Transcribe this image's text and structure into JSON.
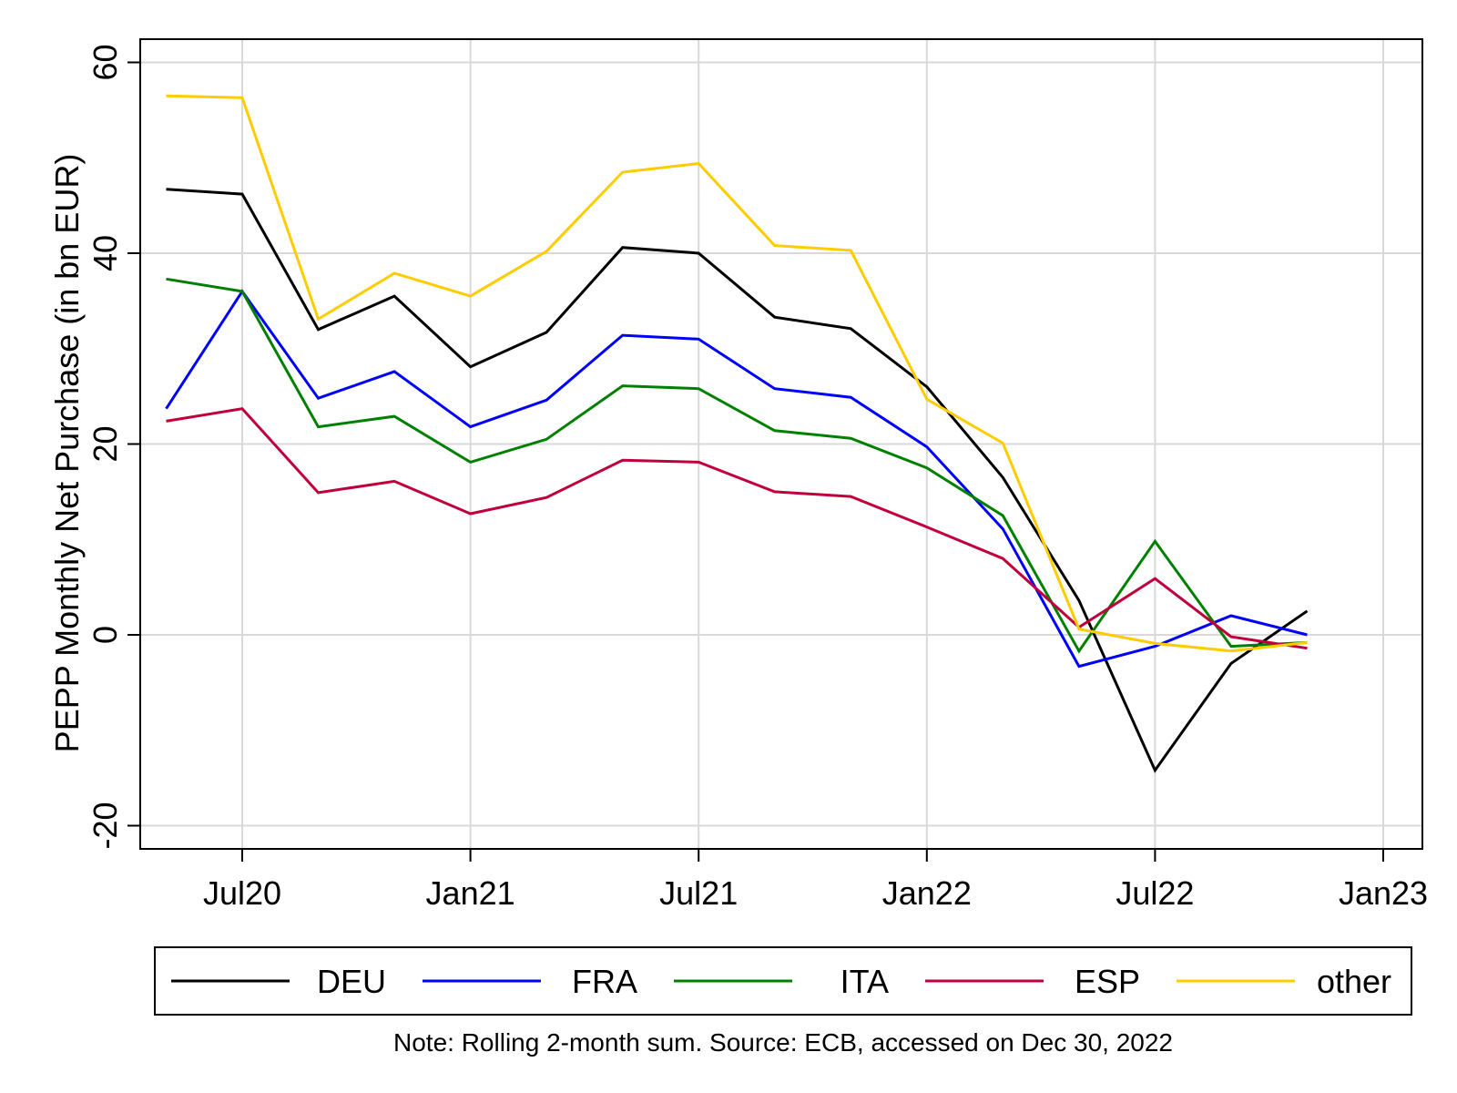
{
  "chart_data": {
    "type": "line",
    "ylabel": "PEPP Monthly Net Purchase (in bn EUR)",
    "xlabel": "",
    "ylim": [
      -22,
      60
    ],
    "yticks": [
      -20,
      0,
      20,
      40,
      60
    ],
    "xticks": [
      {
        "date": "2020-07",
        "label": "Jul20"
      },
      {
        "date": "2021-01",
        "label": "Jan21"
      },
      {
        "date": "2021-07",
        "label": "Jul21"
      },
      {
        "date": "2022-01",
        "label": "Jan22"
      },
      {
        "date": "2022-07",
        "label": "Jul22"
      },
      {
        "date": "2023-01",
        "label": "Jan23"
      }
    ],
    "xlim": [
      "2020-04",
      "2023-01"
    ],
    "x": [
      "2020-05",
      "2020-07",
      "2020-09",
      "2020-11",
      "2021-01",
      "2021-03",
      "2021-05",
      "2021-07",
      "2021-09",
      "2021-11",
      "2022-01",
      "2022-03",
      "2022-05",
      "2022-07",
      "2022-09",
      "2022-11"
    ],
    "series": [
      {
        "name": "DEU",
        "color": "#000000",
        "values": [
          46.7,
          46.2,
          32.0,
          35.5,
          28.1,
          31.7,
          40.6,
          40.0,
          33.3,
          32.1,
          26.0,
          16.5,
          3.6,
          -14.2,
          -3.0,
          2.5
        ]
      },
      {
        "name": "FRA",
        "color": "#0000ff",
        "values": [
          23.7,
          36.0,
          24.8,
          27.6,
          21.8,
          24.6,
          31.4,
          31.0,
          25.8,
          24.9,
          19.7,
          11.1,
          -3.3,
          -1.2,
          2.0,
          0.0
        ]
      },
      {
        "name": "ITA",
        "color": "#008000",
        "values": [
          37.3,
          36.0,
          21.8,
          22.9,
          18.1,
          20.5,
          26.1,
          25.8,
          21.4,
          20.6,
          17.5,
          12.5,
          -1.7,
          9.8,
          -1.2,
          -0.8
        ]
      },
      {
        "name": "ESP",
        "color": "#c0003c",
        "values": [
          22.4,
          23.7,
          14.9,
          16.1,
          12.7,
          14.4,
          18.3,
          18.1,
          15.0,
          14.5,
          11.3,
          8.0,
          0.8,
          5.9,
          -0.2,
          -1.4
        ]
      },
      {
        "name": "other",
        "color": "#ffcc00",
        "values": [
          56.5,
          56.3,
          33.1,
          37.9,
          35.5,
          40.2,
          48.5,
          49.4,
          40.8,
          40.3,
          24.7,
          20.1,
          0.6,
          -0.9,
          -1.7,
          -0.8
        ]
      }
    ],
    "grid": true,
    "legend_position": "bottom",
    "note": "Note: Rolling 2-month sum. Source: ECB, accessed on Dec 30, 2022"
  }
}
